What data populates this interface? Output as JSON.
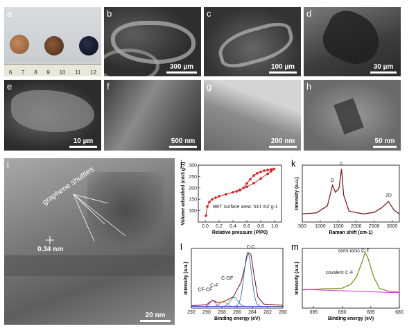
{
  "panels": {
    "a": {
      "label": "a",
      "ruler_ticks": [
        "6",
        "7",
        "8",
        "9",
        "10",
        "11",
        "12"
      ]
    },
    "b": {
      "label": "b",
      "scale": "300 µm"
    },
    "c": {
      "label": "c",
      "scale": "100 µm"
    },
    "d": {
      "label": "d",
      "scale": "30 µm"
    },
    "e": {
      "label": "e",
      "scale": "10 µm"
    },
    "f": {
      "label": "f",
      "scale": "500 nm"
    },
    "g": {
      "label": "g",
      "scale": "200 nm"
    },
    "h": {
      "label": "h",
      "scale": "50 nm"
    },
    "i": {
      "label": "i",
      "scale": "20 nm",
      "annotation": "graphene shuttles",
      "spacing": "0.34 nm"
    }
  },
  "chart_data": [
    {
      "panel": "j",
      "type": "line",
      "xlabel": "Relative pressure (P/P0)",
      "ylabel": "Volume adsorbed (cm3 g-1)",
      "annotation": "BET surface area: 541 m2 g-1",
      "xlim": [
        -0.1,
        1.1
      ],
      "ylim": [
        50,
        300
      ],
      "xticks": [
        "0.0",
        "0.2",
        "0.4",
        "0.6",
        "0.8",
        "1.0"
      ],
      "yticks": [
        "100",
        "150",
        "200",
        "250",
        "300"
      ],
      "colors": {
        "series": "#d62020"
      },
      "series": [
        {
          "values": [
            [
              0.01,
              78
            ],
            [
              0.03,
              118
            ],
            [
              0.06,
              138
            ],
            [
              0.1,
              150
            ],
            [
              0.15,
              157
            ],
            [
              0.2,
              163
            ],
            [
              0.3,
              172
            ],
            [
              0.4,
              181
            ],
            [
              0.5,
              192
            ],
            [
              0.6,
              205
            ],
            [
              0.7,
              221
            ],
            [
              0.8,
              241
            ],
            [
              0.9,
              262
            ],
            [
              0.95,
              273
            ],
            [
              0.99,
              283
            ]
          ]
        },
        {
          "values": [
            [
              0.99,
              283
            ],
            [
              0.95,
              281
            ],
            [
              0.9,
              279
            ],
            [
              0.85,
              276
            ],
            [
              0.8,
              271
            ],
            [
              0.75,
              264
            ],
            [
              0.7,
              254
            ],
            [
              0.65,
              238
            ],
            [
              0.6,
              220
            ],
            [
              0.55,
              200
            ],
            [
              0.5,
              190
            ],
            [
              0.45,
              184
            ]
          ]
        }
      ]
    },
    {
      "panel": "k",
      "type": "line",
      "xlabel": "Raman shift (cm-1)",
      "ylabel": "Intensity (a.u.)",
      "xlim": [
        500,
        3200
      ],
      "xticks": [
        "500",
        "1000",
        "1500",
        "2000",
        "2500",
        "3000"
      ],
      "peaks": [
        "D",
        "G",
        "2D"
      ],
      "colors": {
        "data": "#7b1f1f",
        "fit": "#222222"
      },
      "series": [
        {
          "values": [
            [
              500,
              0.15
            ],
            [
              900,
              0.17
            ],
            [
              1200,
              0.3
            ],
            [
              1340,
              0.68
            ],
            [
              1420,
              0.55
            ],
            [
              1520,
              0.62
            ],
            [
              1590,
              0.98
            ],
            [
              1650,
              0.5
            ],
            [
              1800,
              0.2
            ],
            [
              2200,
              0.15
            ],
            [
              2500,
              0.18
            ],
            [
              2700,
              0.26
            ],
            [
              2900,
              0.38
            ],
            [
              3050,
              0.22
            ],
            [
              3200,
              0.15
            ]
          ]
        }
      ]
    },
    {
      "panel": "l",
      "type": "line",
      "xlabel": "Binding energy (eV)",
      "ylabel": "Intensity (a.u.)",
      "xlim": [
        292,
        280
      ],
      "xticks": [
        "292",
        "290",
        "288",
        "286",
        "284",
        "282",
        "280"
      ],
      "annotations": [
        "CF-CF",
        "C-F",
        "C-OF",
        "C-C"
      ],
      "series": [
        {
          "values": [
            [
              292,
              0.04
            ],
            [
              290,
              0.06
            ],
            [
              289.2,
              0.14
            ],
            [
              288.6,
              0.1
            ],
            [
              287.8,
              0.11
            ],
            [
              286.5,
              0.2
            ],
            [
              285.5,
              0.45
            ],
            [
              285,
              0.72
            ],
            [
              284.6,
              0.98
            ],
            [
              284.2,
              0.95
            ],
            [
              283.8,
              0.6
            ],
            [
              283.3,
              0.2
            ],
            [
              282.5,
              0.07
            ],
            [
              280,
              0.05
            ]
          ]
        }
      ]
    },
    {
      "panel": "m",
      "type": "line",
      "xlabel": "Binding energy (eV)",
      "ylabel": "Intensity (a.u.)",
      "xlim": [
        697,
        680
      ],
      "xticks": [
        "695",
        "690",
        "685",
        "680"
      ],
      "annotations": [
        "semi-ionic C-F",
        "covalent C-F"
      ],
      "series": [
        {
          "values": [
            [
              697,
              0.32
            ],
            [
              693,
              0.34
            ],
            [
              690,
              0.35
            ],
            [
              688.5,
              0.42
            ],
            [
              687.5,
              0.55
            ],
            [
              686.5,
              0.82
            ],
            [
              686,
              0.98
            ],
            [
              685.5,
              0.88
            ],
            [
              684.5,
              0.55
            ],
            [
              683.5,
              0.35
            ],
            [
              682,
              0.3
            ],
            [
              680,
              0.28
            ]
          ]
        }
      ]
    }
  ]
}
